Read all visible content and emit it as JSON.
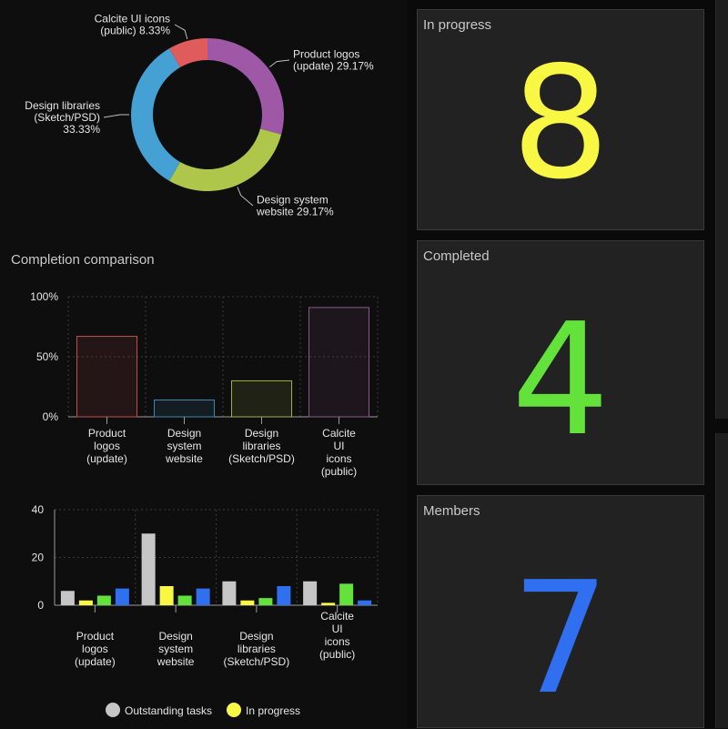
{
  "sections": {
    "completion_title": "Completion comparison"
  },
  "cards": [
    {
      "title": "In progress",
      "value": "8",
      "color": "#f7f744"
    },
    {
      "title": "Completed",
      "value": "4",
      "color": "#62e23a"
    },
    {
      "title": "Members",
      "value": "7",
      "color": "#2f6ff0"
    }
  ],
  "chart_data": [
    {
      "type": "pie",
      "donut": true,
      "categories": [
        "Product logos (update)",
        "Design system website",
        "Design libraries (Sketch/PSD)",
        "Calcite UI icons (public)"
      ],
      "values": [
        29.17,
        29.17,
        33.33,
        8.33
      ],
      "slice_labels": [
        [
          "Product logos",
          "(update) 29.17%"
        ],
        [
          "Design system",
          "website 29.17%"
        ],
        [
          "Design libraries",
          "(Sketch/PSD)",
          "33.33%"
        ],
        [
          "Calcite UI icons",
          "(public) 8.33%"
        ]
      ],
      "colors": [
        "#9e58a6",
        "#aec64a",
        "#45a0d4",
        "#e05b5b"
      ]
    },
    {
      "type": "bar",
      "title": "Completion comparison",
      "categories": [
        [
          "Product",
          "logos",
          "(update)"
        ],
        [
          "Design",
          "system",
          "website"
        ],
        [
          "Design",
          "libraries",
          "(Sketch/PSD)"
        ],
        [
          "Calcite",
          "UI",
          "icons",
          "(public)"
        ]
      ],
      "values": [
        67,
        14,
        30,
        91
      ],
      "ylim": [
        0,
        100
      ],
      "yticks": [
        "0%",
        "50%",
        "100%"
      ],
      "colors": [
        "#c24f4f",
        "#3d88b3",
        "#a0b23f",
        "#8a5a8e"
      ],
      "grid": true
    },
    {
      "type": "bar",
      "categories": [
        [
          "Product",
          "logos",
          "(update)"
        ],
        [
          "Design",
          "system",
          "website"
        ],
        [
          "Design",
          "libraries",
          "(Sketch/PSD)"
        ],
        [
          "Calcite",
          "UI",
          "icons",
          "(public)"
        ]
      ],
      "series": [
        {
          "name": "Outstanding tasks",
          "color": "#c6c6c6",
          "values": [
            6,
            30,
            10,
            10
          ]
        },
        {
          "name": "In progress",
          "color": "#f7f744",
          "values": [
            2,
            8,
            2,
            1
          ]
        },
        {
          "name": "",
          "color": "#62e23a",
          "values": [
            4,
            4,
            3,
            9
          ]
        },
        {
          "name": "",
          "color": "#2f6ff0",
          "values": [
            7,
            7,
            8,
            2
          ]
        }
      ],
      "ylim": [
        0,
        40
      ],
      "yticks": [
        "0",
        "20",
        "40"
      ],
      "legend": [
        "Outstanding tasks",
        "In progress"
      ],
      "legend_position": "bottom",
      "grid": true
    }
  ]
}
